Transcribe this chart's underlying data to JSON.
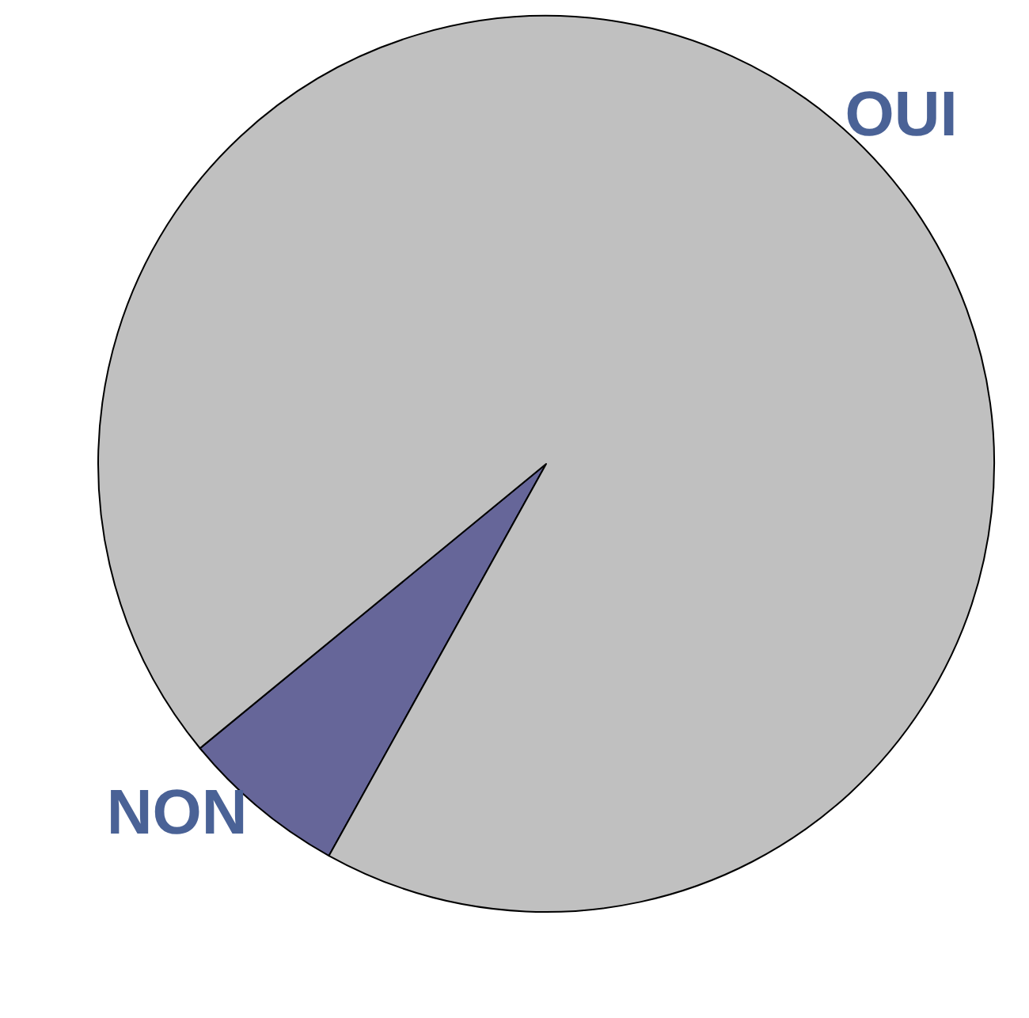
{
  "chart_data": {
    "type": "pie",
    "categories": [
      "NON",
      "OUI"
    ],
    "values": [
      6,
      94
    ],
    "colors": [
      "#666699",
      "#c0c0c0"
    ],
    "legend": false
  }
}
